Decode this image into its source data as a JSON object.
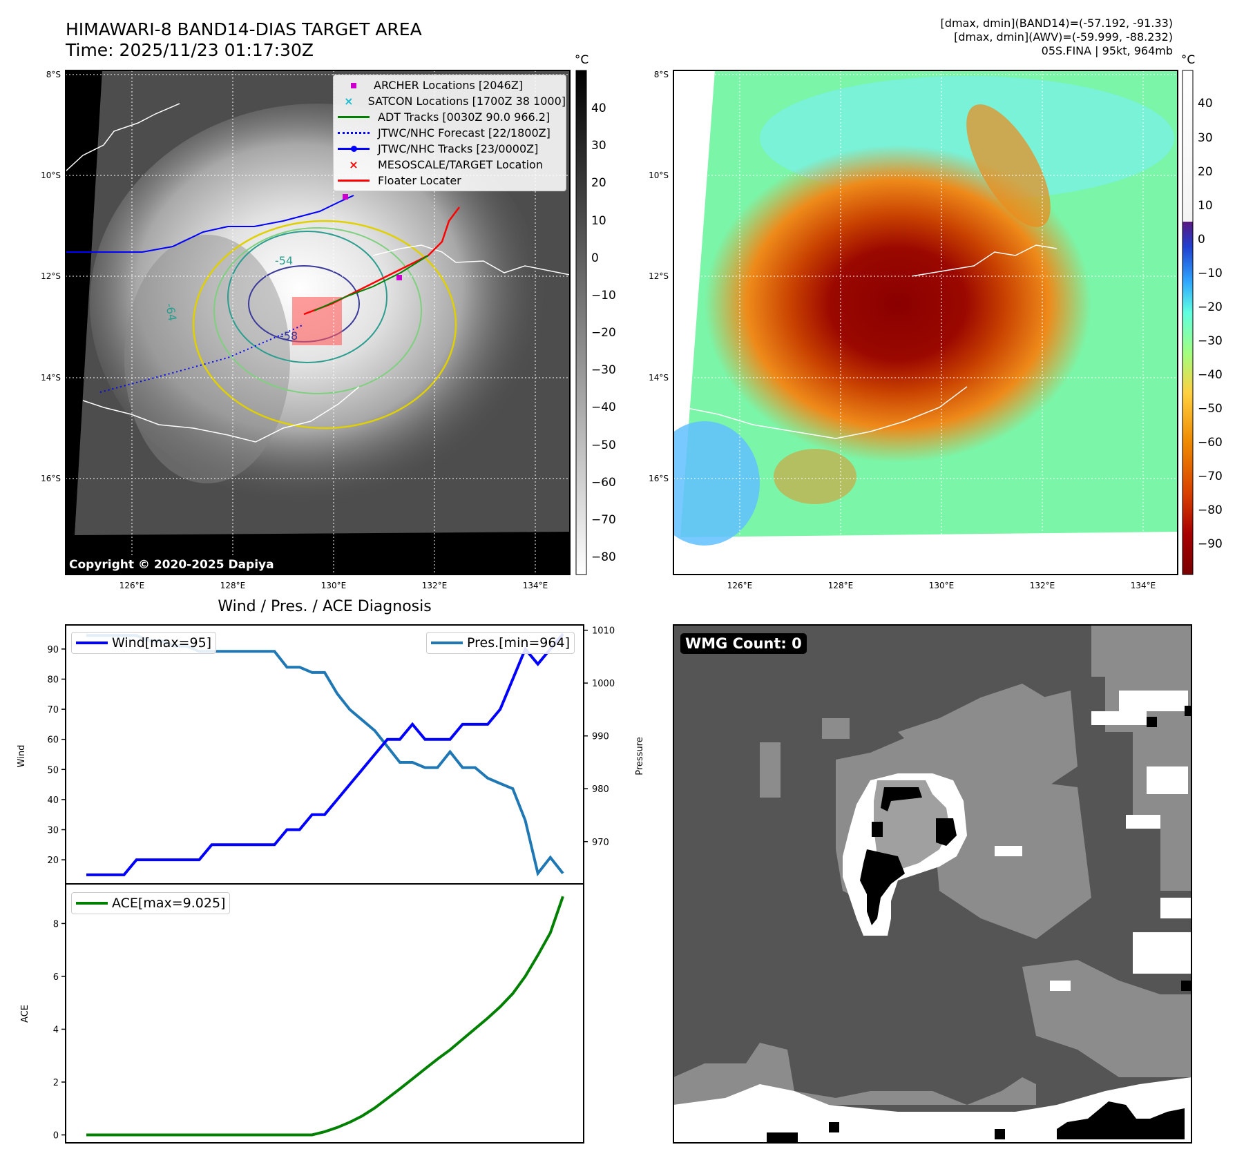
{
  "header": {
    "title": "HIMAWARI-8 BAND14-DIAS TARGET AREA",
    "time": "Time: 2025/11/23 01:17:30Z",
    "info_line1": "[dmax, dmin](BAND14)=(-57.192, -91.33)",
    "info_line2": "[dmax, dmin](AWV)=(-59.999, -88.232)",
    "info_line3": "05S.FINA | 95kt, 964mb"
  },
  "map_axes": {
    "lat_labels": [
      "8°S",
      "10°S",
      "12°S",
      "14°S",
      "16°S"
    ],
    "lon_labels": [
      "126°E",
      "128°E",
      "130°E",
      "132°E",
      "134°E"
    ]
  },
  "ir_panel": {
    "copyright": "Copyright © 2020-2025 Dapiya",
    "contour_labels": [
      "-54",
      "-64",
      "-58"
    ],
    "colorbar": {
      "unit": "°C",
      "ticks": [
        "40",
        "30",
        "20",
        "10",
        "0",
        "−10",
        "−20",
        "−30",
        "−40",
        "−50",
        "−60",
        "−70",
        "−80"
      ]
    },
    "legend": [
      {
        "label": "ARCHER Locations [2046Z]",
        "color": "#cc00cc",
        "marker": "square"
      },
      {
        "label": "SATCON Locations [1700Z 38 1000]",
        "color": "#17becf",
        "marker": "x"
      },
      {
        "label": "ADT Tracks [0030Z 90.0 966.2]",
        "color": "#008000",
        "marker": "line"
      },
      {
        "label": "JTWC/NHC Forecast [22/1800Z]",
        "color": "#0000ff",
        "marker": "dotted"
      },
      {
        "label": "JTWC/NHC Tracks [23/0000Z]",
        "color": "#0000ff",
        "marker": "line-dot"
      },
      {
        "label": "MESOSCALE/TARGET Location",
        "color": "#ff0000",
        "marker": "x"
      },
      {
        "label": "Floater Locater",
        "color": "#ff0000",
        "marker": "line"
      }
    ]
  },
  "awv_panel": {
    "colorbar": {
      "unit": "°C",
      "ticks": [
        "40",
        "30",
        "20",
        "10",
        "0",
        "−10",
        "−20",
        "−30",
        "−40",
        "−50",
        "−60",
        "−70",
        "−80",
        "−90"
      ]
    }
  },
  "diag_panel": {
    "title": "Wind / Pres. / ACE Diagnosis",
    "wind_ylabel": "Wind",
    "pres_ylabel": "Pressure",
    "ace_ylabel": "ACE",
    "legend_wind": "Wind[max=95]",
    "legend_pres": "Pres.[min=964]",
    "legend_ace": "ACE[max=9.025]",
    "wind_ticks": [
      "20",
      "30",
      "40",
      "50",
      "60",
      "70",
      "80",
      "90"
    ],
    "pres_ticks": [
      "970",
      "980",
      "990",
      "1000",
      "1010"
    ],
    "ace_ticks": [
      "0",
      "2",
      "4",
      "6",
      "8"
    ]
  },
  "wmg_panel": {
    "badge": "WMG Count: 0"
  },
  "colors": {
    "wind": "#0000ff",
    "pres": "#1f77b4",
    "ace": "#008000",
    "archer": "#cc00cc",
    "floater": "#ff0000"
  },
  "chart_data": [
    {
      "type": "line",
      "title": "Wind / Pres. / ACE Diagnosis",
      "xlabel": "",
      "ylabel": "Wind",
      "ylim": [
        12,
        98
      ],
      "x": [
        0,
        1,
        2,
        3,
        4,
        5,
        6,
        7,
        8,
        9,
        10,
        11,
        12,
        13,
        14,
        15,
        16,
        17,
        18,
        19,
        20,
        21,
        22,
        23,
        24,
        25,
        26,
        27,
        28,
        29,
        30,
        31,
        32,
        33,
        34,
        35,
        36,
        37,
        38
      ],
      "series": [
        {
          "name": "Wind[max=95]",
          "values": [
            15,
            15,
            15,
            15,
            20,
            20,
            20,
            20,
            20,
            20,
            25,
            25,
            25,
            25,
            25,
            25,
            30,
            30,
            35,
            35,
            40,
            45,
            50,
            55,
            60,
            60,
            65,
            60,
            60,
            60,
            65,
            65,
            65,
            70,
            80,
            90,
            85,
            90,
            95
          ]
        }
      ]
    },
    {
      "type": "line",
      "ylabel": "Pressure",
      "ylim": [
        962,
        1011
      ],
      "x": [
        0,
        1,
        2,
        3,
        4,
        5,
        6,
        7,
        8,
        9,
        10,
        11,
        12,
        13,
        14,
        15,
        16,
        17,
        18,
        19,
        20,
        21,
        22,
        23,
        24,
        25,
        26,
        27,
        28,
        29,
        30,
        31,
        32,
        33,
        34,
        35,
        36,
        37,
        38
      ],
      "series": [
        {
          "name": "Pres.[min=964]",
          "values": [
            1009,
            1009,
            1009,
            1009,
            1009,
            1008,
            1008,
            1007,
            1007,
            1006,
            1006,
            1006,
            1006,
            1006,
            1006,
            1006,
            1003,
            1003,
            1002,
            1002,
            998,
            995,
            993,
            991,
            988,
            985,
            985,
            984,
            984,
            987,
            984,
            984,
            982,
            981,
            980,
            974,
            964,
            967,
            964
          ]
        }
      ]
    },
    {
      "type": "line",
      "ylabel": "ACE",
      "ylim": [
        -0.3,
        9.5
      ],
      "x": [
        0,
        1,
        2,
        3,
        4,
        5,
        6,
        7,
        8,
        9,
        10,
        11,
        12,
        13,
        14,
        15,
        16,
        17,
        18,
        19,
        20,
        21,
        22,
        23,
        24,
        25,
        26,
        27,
        28,
        29,
        30,
        31,
        32,
        33,
        34,
        35,
        36,
        37,
        38
      ],
      "series": [
        {
          "name": "ACE[max=9.025]",
          "values": [
            0,
            0,
            0,
            0,
            0,
            0,
            0,
            0,
            0,
            0,
            0,
            0,
            0,
            0,
            0,
            0,
            0,
            0,
            0,
            0.12,
            0.28,
            0.48,
            0.72,
            1.02,
            1.38,
            1.74,
            2.12,
            2.5,
            2.87,
            3.22,
            3.62,
            4.02,
            4.42,
            4.85,
            5.35,
            6.0,
            6.8,
            7.65,
            9.025
          ]
        }
      ]
    }
  ]
}
